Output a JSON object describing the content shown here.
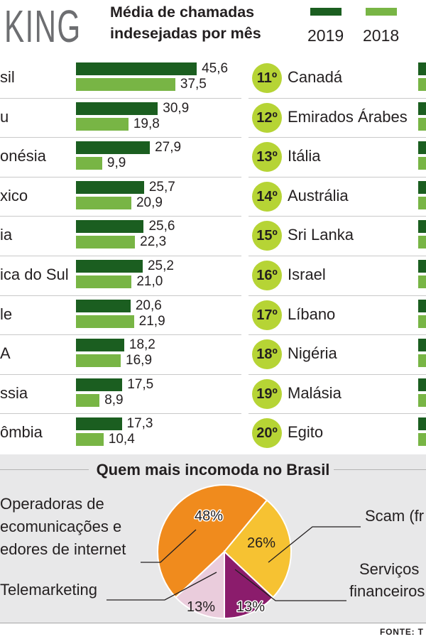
{
  "header": {
    "title_partial": "KING"
  },
  "chart_data": [
    {
      "type": "bar",
      "orientation": "horizontal",
      "title_lines": [
        "Média de chamadas",
        "indesejadas por mês"
      ],
      "categories": [
        "sil",
        "u",
        "onésia",
        "xico",
        "ia",
        "ica do Sul",
        "le",
        "A",
        "ssia",
        "ômbia"
      ],
      "series": [
        {
          "name": "2019",
          "color": "#1b5e20",
          "values": [
            45.6,
            30.9,
            27.9,
            25.7,
            25.6,
            25.2,
            20.6,
            18.2,
            17.5,
            17.3
          ],
          "labels": [
            "45,6",
            "30,9",
            "27,9",
            "25,7",
            "25,6",
            "25,2",
            "20,6",
            "18,2",
            "17,5",
            "17,3"
          ]
        },
        {
          "name": "2018",
          "color": "#78b545",
          "values": [
            37.5,
            19.8,
            9.9,
            20.9,
            22.3,
            21.0,
            21.9,
            16.9,
            8.9,
            10.4
          ],
          "labels": [
            "37,5",
            "19,8",
            "9,9",
            "20,9",
            "22,3",
            "21,0",
            "21,9",
            "16,9",
            "8,9",
            "10,4"
          ]
        }
      ],
      "xlabel": "",
      "ylabel": ""
    },
    {
      "type": "pie",
      "title": "Quem mais incomoda no Brasil",
      "slices": [
        {
          "label_lines": [
            "Operadoras de",
            "ecomunicações e",
            "edores de internet"
          ],
          "value": 48,
          "label": "48%",
          "color": "#f08b1d"
        },
        {
          "label_lines": [
            "Scam (fr"
          ],
          "value": 26,
          "label": "26%",
          "color": "#f6c232"
        },
        {
          "label_lines": [
            "Serviços",
            "financeiros"
          ],
          "value": 13,
          "label": "13%",
          "color": "#8b1c6c"
        },
        {
          "label_lines": [
            "Telemarketing"
          ],
          "value": 13,
          "label": "13%",
          "color": "#eaccdc"
        }
      ]
    }
  ],
  "ranking_continued": [
    {
      "rank": "11º",
      "country": "Canadá"
    },
    {
      "rank": "12º",
      "country": "Emirados Árabes"
    },
    {
      "rank": "13º",
      "country": "Itália"
    },
    {
      "rank": "14º",
      "country": "Austrália"
    },
    {
      "rank": "15º",
      "country": "Sri Lanka"
    },
    {
      "rank": "16º",
      "country": "Israel"
    },
    {
      "rank": "17º",
      "country": "Líbano"
    },
    {
      "rank": "18º",
      "country": "Nigéria"
    },
    {
      "rank": "19º",
      "country": "Malásia"
    },
    {
      "rank": "20º",
      "country": "Egito"
    }
  ],
  "colors": {
    "rank_badge": "#b6d435",
    "section_background": "#e8e8e9"
  },
  "source": "FONTE: T"
}
